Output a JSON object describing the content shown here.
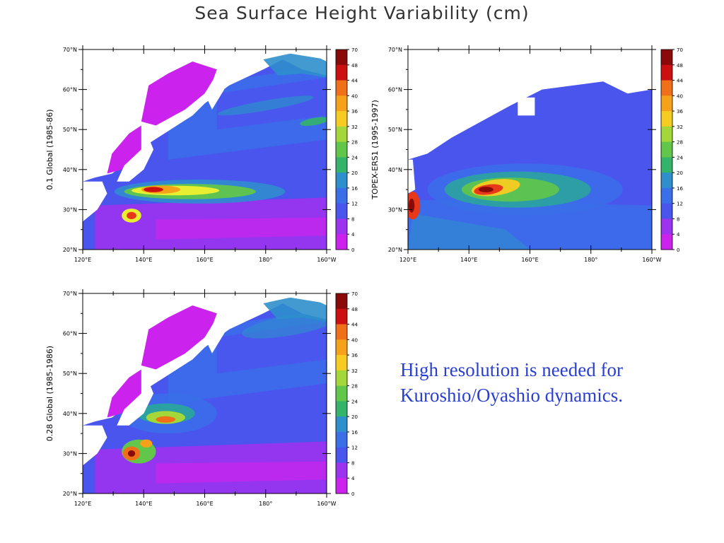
{
  "title": "Sea Surface Height Variability (cm)",
  "caption": "High resolution is needed for Kuroshio/Oyashio dynamics.",
  "colors": {
    "land": "#ffffff",
    "colorbar": [
      "#cc22ee",
      "#9c33ee",
      "#6a3cf0",
      "#4a55ee",
      "#3a6fe8",
      "#2e8fcc",
      "#2aa79a",
      "#34b46a",
      "#62c64a",
      "#a4d83a",
      "#e8ee30",
      "#f6cc22",
      "#f5a21a",
      "#f0701a",
      "#e8381a",
      "#cc1010",
      "#8a0a0a"
    ]
  },
  "colorbar_labels": [
    "70",
    "48",
    "44",
    "40",
    "36",
    "32",
    "28",
    "24",
    "20",
    "16",
    "12",
    "8",
    "4",
    "0"
  ],
  "panels": [
    {
      "ylabel": "0.1 Global (1985-86)",
      "y_ticks": [
        "70°N",
        "60°N",
        "50°N",
        "40°N",
        "30°N",
        "20°N"
      ],
      "x_ticks": [
        "120°E",
        "140°E",
        "160°E",
        "180°",
        "160°W"
      ],
      "map": "model_fine"
    },
    {
      "ylabel": "TOPEX-ERS1 (1995-1997)",
      "y_ticks": [
        "70°N",
        "60°N",
        "50°N",
        "40°N",
        "30°N",
        "20°N"
      ],
      "x_ticks": [
        "120°E",
        "140°E",
        "160°E",
        "180°",
        "160°W"
      ],
      "map": "observed"
    },
    {
      "ylabel": "0.28 Global (1985-1986)",
      "y_ticks": [
        "70°N",
        "60°N",
        "50°N",
        "40°N",
        "30°N",
        "20°N"
      ],
      "x_ticks": [
        "120°E",
        "140°E",
        "160°E",
        "180°",
        "160°W"
      ],
      "map": "model_coarse"
    }
  ]
}
